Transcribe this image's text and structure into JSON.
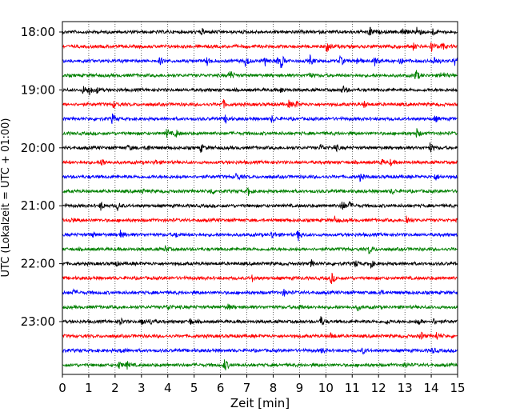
{
  "chart_data": {
    "type": "line",
    "title": "",
    "xlabel": "Zeit  [min]",
    "ylabel": "UTC (Lokalzeit = UTC + 01:00)",
    "xlim": [
      0,
      15
    ],
    "x_ticks": [
      0,
      1,
      2,
      3,
      4,
      5,
      6,
      7,
      8,
      9,
      10,
      11,
      12,
      13,
      14,
      15
    ],
    "y_ticks": [
      "18:00",
      "19:00",
      "20:00",
      "21:00",
      "22:00",
      "23:00"
    ],
    "grid": "vertical-dotted",
    "trace_colors": [
      "#000000",
      "#ff0000",
      "#0000ff",
      "#008000"
    ],
    "traces": [
      {
        "start": "18:00",
        "color": "#000000",
        "events": [
          {
            "t": 5.3,
            "a": 0.4
          },
          {
            "t": 11.65,
            "a": 0.9
          },
          {
            "t": 12.9,
            "a": 0.6
          },
          {
            "t": 13.45,
            "a": 1.0
          },
          {
            "t": 14.05,
            "a": 0.5
          }
        ]
      },
      {
        "start": "18:15",
        "color": "#ff0000",
        "events": [
          {
            "t": 10.05,
            "a": 1.0
          },
          {
            "t": 12.55,
            "a": 0.5
          },
          {
            "t": 13.3,
            "a": 0.5
          },
          {
            "t": 14.0,
            "a": 0.8
          },
          {
            "t": 14.4,
            "a": 0.6
          }
        ]
      },
      {
        "start": "18:30",
        "color": "#0000ff",
        "events": [
          {
            "t": 3.7,
            "a": 0.5
          },
          {
            "t": 5.5,
            "a": 0.6
          },
          {
            "t": 6.95,
            "a": 0.9
          },
          {
            "t": 7.7,
            "a": 0.7
          },
          {
            "t": 8.1,
            "a": 0.7
          },
          {
            "t": 8.3,
            "a": 1.0
          },
          {
            "t": 9.4,
            "a": 0.7
          },
          {
            "t": 10.55,
            "a": 0.7
          },
          {
            "t": 11.2,
            "a": 0.6
          },
          {
            "t": 11.85,
            "a": 0.7
          },
          {
            "t": 12.8,
            "a": 0.6
          },
          {
            "t": 14.1,
            "a": 0.8
          },
          {
            "t": 14.9,
            "a": 0.8
          }
        ]
      },
      {
        "start": "18:45",
        "color": "#008000",
        "events": [
          {
            "t": 6.35,
            "a": 0.9
          },
          {
            "t": 9.35,
            "a": 0.5
          },
          {
            "t": 13.4,
            "a": 1.0
          },
          {
            "t": 14.4,
            "a": 0.7
          }
        ]
      },
      {
        "start": "19:00",
        "color": "#000000",
        "events": [
          {
            "t": 0.8,
            "a": 0.6
          },
          {
            "t": 1.0,
            "a": 0.8
          },
          {
            "t": 1.3,
            "a": 0.4
          },
          {
            "t": 8.3,
            "a": 0.4
          },
          {
            "t": 10.65,
            "a": 0.6
          }
        ]
      },
      {
        "start": "19:15",
        "color": "#ff0000",
        "events": [
          {
            "t": 1.95,
            "a": 0.5
          },
          {
            "t": 6.1,
            "a": 0.6
          },
          {
            "t": 8.6,
            "a": 0.5
          },
          {
            "t": 8.85,
            "a": 0.5
          },
          {
            "t": 11.45,
            "a": 0.4
          }
        ]
      },
      {
        "start": "19:30",
        "color": "#0000ff",
        "events": [
          {
            "t": 1.9,
            "a": 0.7
          },
          {
            "t": 6.2,
            "a": 0.6
          },
          {
            "t": 7.95,
            "a": 0.5
          },
          {
            "t": 14.15,
            "a": 0.4
          }
        ]
      },
      {
        "start": "19:45",
        "color": "#008000",
        "events": [
          {
            "t": 3.95,
            "a": 0.6
          },
          {
            "t": 4.3,
            "a": 0.6
          },
          {
            "t": 13.45,
            "a": 0.6
          }
        ]
      },
      {
        "start": "20:00",
        "color": "#000000",
        "events": [
          {
            "t": 2.5,
            "a": 0.4
          },
          {
            "t": 3.2,
            "a": 0.5
          },
          {
            "t": 5.25,
            "a": 0.6
          },
          {
            "t": 9.8,
            "a": 0.5
          },
          {
            "t": 10.35,
            "a": 0.6
          },
          {
            "t": 13.95,
            "a": 0.7
          }
        ]
      },
      {
        "start": "20:15",
        "color": "#ff0000",
        "events": [
          {
            "t": 1.5,
            "a": 0.7
          },
          {
            "t": 3.5,
            "a": 0.4
          },
          {
            "t": 12.1,
            "a": 0.4
          },
          {
            "t": 12.45,
            "a": 0.4
          }
        ]
      },
      {
        "start": "20:30",
        "color": "#0000ff",
        "events": [
          {
            "t": 6.6,
            "a": 0.6
          },
          {
            "t": 11.3,
            "a": 0.5
          },
          {
            "t": 14.15,
            "a": 0.5
          }
        ]
      },
      {
        "start": "20:45",
        "color": "#008000",
        "events": [
          {
            "t": 3.0,
            "a": 0.4
          },
          {
            "t": 5.65,
            "a": 0.5
          },
          {
            "t": 7.05,
            "a": 0.6
          },
          {
            "t": 12.5,
            "a": 0.4
          }
        ]
      },
      {
        "start": "21:00",
        "color": "#000000",
        "events": [
          {
            "t": 1.45,
            "a": 0.6
          },
          {
            "t": 2.1,
            "a": 0.6
          },
          {
            "t": 10.6,
            "a": 1.0
          },
          {
            "t": 10.9,
            "a": 0.5
          }
        ]
      },
      {
        "start": "21:15",
        "color": "#ff0000",
        "events": [
          {
            "t": 0.3,
            "a": 0.4
          },
          {
            "t": 10.35,
            "a": 0.5
          },
          {
            "t": 13.05,
            "a": 0.8
          }
        ]
      },
      {
        "start": "21:30",
        "color": "#0000ff",
        "events": [
          {
            "t": 1.1,
            "a": 0.4
          },
          {
            "t": 2.2,
            "a": 0.6
          },
          {
            "t": 4.3,
            "a": 0.4
          },
          {
            "t": 7.95,
            "a": 0.6
          },
          {
            "t": 8.95,
            "a": 0.8
          }
        ]
      },
      {
        "start": "21:45",
        "color": "#008000",
        "events": [
          {
            "t": 3.9,
            "a": 0.4
          },
          {
            "t": 11.65,
            "a": 0.7
          }
        ]
      },
      {
        "start": "22:00",
        "color": "#000000",
        "events": [
          {
            "t": 2.0,
            "a": 0.4
          },
          {
            "t": 9.45,
            "a": 0.5
          },
          {
            "t": 11.1,
            "a": 0.6
          },
          {
            "t": 11.7,
            "a": 0.6
          }
        ]
      },
      {
        "start": "22:15",
        "color": "#ff0000",
        "events": [
          {
            "t": 7.2,
            "a": 0.4
          },
          {
            "t": 10.2,
            "a": 0.9
          }
        ]
      },
      {
        "start": "22:30",
        "color": "#0000ff",
        "events": [
          {
            "t": 0.4,
            "a": 0.4
          },
          {
            "t": 8.4,
            "a": 0.5
          },
          {
            "t": 12.05,
            "a": 0.4
          }
        ]
      },
      {
        "start": "22:45",
        "color": "#008000",
        "events": [
          {
            "t": 4.0,
            "a": 0.5
          },
          {
            "t": 6.25,
            "a": 0.5
          },
          {
            "t": 8.95,
            "a": 0.5
          },
          {
            "t": 11.2,
            "a": 0.4
          }
        ]
      },
      {
        "start": "23:00",
        "color": "#000000",
        "events": [
          {
            "t": 2.15,
            "a": 0.8
          },
          {
            "t": 3.0,
            "a": 0.6
          },
          {
            "t": 3.35,
            "a": 0.4
          },
          {
            "t": 4.85,
            "a": 0.4
          },
          {
            "t": 9.8,
            "a": 0.8
          },
          {
            "t": 12.3,
            "a": 0.4
          },
          {
            "t": 13.5,
            "a": 0.5
          },
          {
            "t": 14.1,
            "a": 0.4
          }
        ]
      },
      {
        "start": "23:15",
        "color": "#ff0000",
        "events": [
          {
            "t": 10.2,
            "a": 0.5
          },
          {
            "t": 13.6,
            "a": 0.6
          },
          {
            "t": 14.2,
            "a": 0.6
          }
        ]
      },
      {
        "start": "23:30",
        "color": "#0000ff",
        "events": [
          {
            "t": 2.25,
            "a": 0.4
          },
          {
            "t": 9.85,
            "a": 0.4
          },
          {
            "t": 11.4,
            "a": 0.4
          },
          {
            "t": 14.05,
            "a": 0.4
          }
        ]
      },
      {
        "start": "23:45",
        "color": "#008000",
        "events": [
          {
            "t": 2.15,
            "a": 0.5
          },
          {
            "t": 2.45,
            "a": 0.5
          },
          {
            "t": 6.15,
            "a": 1.0
          },
          {
            "t": 13.0,
            "a": 0.4
          }
        ]
      }
    ]
  }
}
